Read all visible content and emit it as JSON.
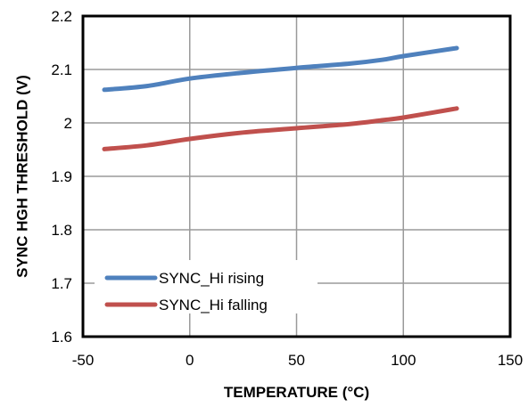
{
  "chart_data": {
    "type": "line",
    "title": "",
    "xlabel": "TEMPERATURE (°C)",
    "ylabel": "SYNC  HGH  THRESHOLD (V)",
    "xlim": [
      -50,
      150
    ],
    "ylim": [
      1.6,
      2.2
    ],
    "x_ticks": [
      -50,
      0,
      50,
      100,
      150
    ],
    "y_ticks": [
      1.6,
      1.7,
      1.8,
      1.9,
      2.0,
      2.1,
      2.2
    ],
    "x_tick_labels": [
      "-50",
      "0",
      "50",
      "100",
      "150"
    ],
    "y_tick_labels": [
      "1.6",
      "1.7",
      "1.8",
      "1.9",
      "2",
      "2.1",
      "2.2"
    ],
    "grid": true,
    "legend_position": "bottom-left",
    "series": [
      {
        "name": "SYNC_Hi rising",
        "color": "#4f81bd",
        "x": [
          -40,
          -20,
          0,
          25,
          50,
          75,
          90,
          100,
          125
        ],
        "y": [
          2.062,
          2.069,
          2.083,
          2.094,
          2.103,
          2.111,
          2.118,
          2.125,
          2.14
        ]
      },
      {
        "name": "SYNC_Hi falling",
        "color": "#c0504d",
        "x": [
          -40,
          -20,
          0,
          25,
          50,
          75,
          90,
          100,
          125
        ],
        "y": [
          1.951,
          1.958,
          1.97,
          1.982,
          1.99,
          1.998,
          2.005,
          2.01,
          2.027
        ]
      }
    ]
  }
}
